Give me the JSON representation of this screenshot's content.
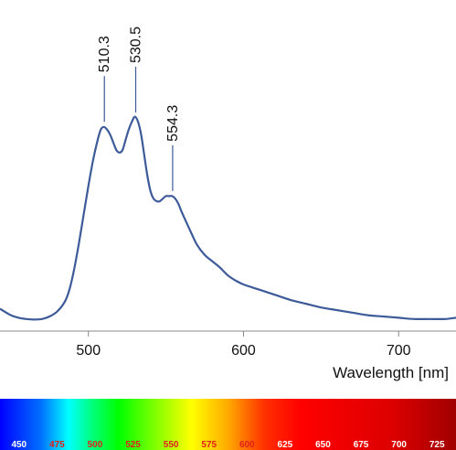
{
  "chart_data": {
    "type": "line",
    "xlabel": "Wavelength [nm]",
    "xlim": [
      443,
      737
    ],
    "ylim": [
      0,
      1
    ],
    "x_ticks": [
      500,
      600,
      700
    ],
    "series": [
      {
        "color": "#3d5a99",
        "x": [
          443,
          450,
          455,
          460,
          465,
          470,
          475,
          480,
          485,
          488,
          491,
          494,
          497,
          500,
          503,
          506,
          508,
          510,
          512,
          514,
          516,
          518,
          520,
          522,
          524,
          526,
          528,
          530,
          532,
          534,
          536,
          538,
          540,
          542,
          544,
          546,
          548,
          550,
          552,
          554,
          556,
          558,
          560,
          563,
          566,
          570,
          575,
          580,
          585,
          590,
          595,
          600,
          610,
          620,
          630,
          640,
          650,
          660,
          670,
          680,
          690,
          700,
          710,
          720,
          730,
          737
        ],
        "y": [
          0.08,
          0.055,
          0.045,
          0.04,
          0.038,
          0.04,
          0.05,
          0.07,
          0.11,
          0.16,
          0.24,
          0.34,
          0.45,
          0.56,
          0.66,
          0.74,
          0.78,
          0.79,
          0.78,
          0.76,
          0.73,
          0.7,
          0.69,
          0.7,
          0.74,
          0.78,
          0.81,
          0.83,
          0.81,
          0.76,
          0.68,
          0.6,
          0.54,
          0.51,
          0.5,
          0.5,
          0.51,
          0.52,
          0.52,
          0.52,
          0.51,
          0.49,
          0.46,
          0.42,
          0.38,
          0.33,
          0.29,
          0.265,
          0.24,
          0.21,
          0.19,
          0.175,
          0.155,
          0.135,
          0.115,
          0.1,
          0.085,
          0.075,
          0.065,
          0.055,
          0.05,
          0.045,
          0.04,
          0.04,
          0.04,
          0.045
        ]
      }
    ],
    "annotations": [
      {
        "label": "510.3",
        "x": 510.3
      },
      {
        "label": "530.5",
        "x": 530.5
      },
      {
        "label": "554.3",
        "x": 554.3
      }
    ],
    "grid": false
  },
  "spectrum_bar": {
    "labels": [
      {
        "text": "450",
        "color": "#ffffff"
      },
      {
        "text": "475",
        "color": "#e0201a"
      },
      {
        "text": "500",
        "color": "#e0201a"
      },
      {
        "text": "525",
        "color": "#e0201a"
      },
      {
        "text": "550",
        "color": "#e0201a"
      },
      {
        "text": "575",
        "color": "#e0201a"
      },
      {
        "text": "600",
        "color": "#e0201a"
      },
      {
        "text": "625",
        "color": "#ffffff"
      },
      {
        "text": "650",
        "color": "#ffffff"
      },
      {
        "text": "675",
        "color": "#ffffff"
      },
      {
        "text": "700",
        "color": "#ffffff"
      },
      {
        "text": "725",
        "color": "#ffffff"
      }
    ]
  }
}
